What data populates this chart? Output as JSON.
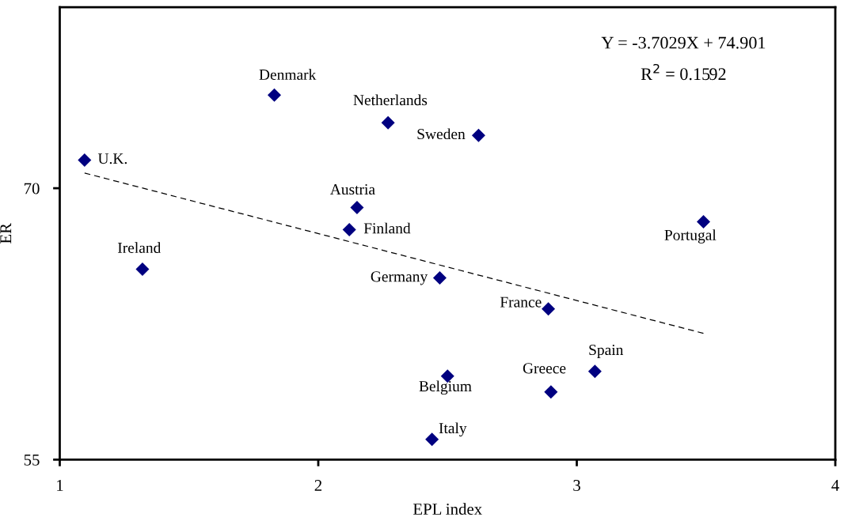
{
  "chart_data": {
    "type": "scatter",
    "xlabel": "EPL index",
    "ylabel": "ER",
    "xlim": [
      1,
      4
    ],
    "xticks": [
      1,
      2,
      3,
      4
    ],
    "ylim": [
      55,
      80
    ],
    "yticks": [
      55,
      70
    ],
    "grid": false,
    "marker": "diamond",
    "series": [
      {
        "color": "#000080",
        "x": [
          1.096,
          1.83,
          2.27,
          2.62,
          2.15,
          2.12,
          1.32,
          2.47,
          2.89,
          3.49,
          3.07,
          2.9,
          2.5,
          2.44
        ],
        "values": [
          71.56,
          75.15,
          73.62,
          72.92,
          68.93,
          67.71,
          65.52,
          65.04,
          63.33,
          68.15,
          59.88,
          58.74,
          59.61,
          56.12
        ]
      },
      {
        "type": "line",
        "color": "#000000",
        "line_style": "dashed",
        "marker": "none",
        "x": [
          1.096,
          3.49
        ],
        "values": [
          70.84,
          61.98
        ]
      }
    ],
    "annotations": [
      {
        "text": "U.K.",
        "x": 1.096,
        "y": 71.56
      },
      {
        "text": "Denmark",
        "x": 1.83,
        "y": 75.15
      },
      {
        "text": "Netherlands",
        "x": 2.27,
        "y": 73.62
      },
      {
        "text": "Sweden",
        "x": 2.62,
        "y": 72.92
      },
      {
        "text": "Austria",
        "x": 2.15,
        "y": 68.93
      },
      {
        "text": "Finland",
        "x": 2.12,
        "y": 67.71
      },
      {
        "text": "Ireland",
        "x": 1.32,
        "y": 65.52
      },
      {
        "text": "Germany",
        "x": 2.47,
        "y": 65.04
      },
      {
        "text": "France",
        "x": 2.89,
        "y": 63.33
      },
      {
        "text": "Portugal",
        "x": 3.49,
        "y": 68.15
      },
      {
        "text": "Spain",
        "x": 3.07,
        "y": 59.88
      },
      {
        "text": "Greece",
        "x": 2.9,
        "y": 58.74
      },
      {
        "text": "Belgium",
        "x": 2.5,
        "y": 59.61
      },
      {
        "text": "Italy",
        "x": 2.44,
        "y": 56.12
      },
      "Y = -3.7029X + 74.901",
      "R$^{2}$ = 0.1592"
    ]
  }
}
